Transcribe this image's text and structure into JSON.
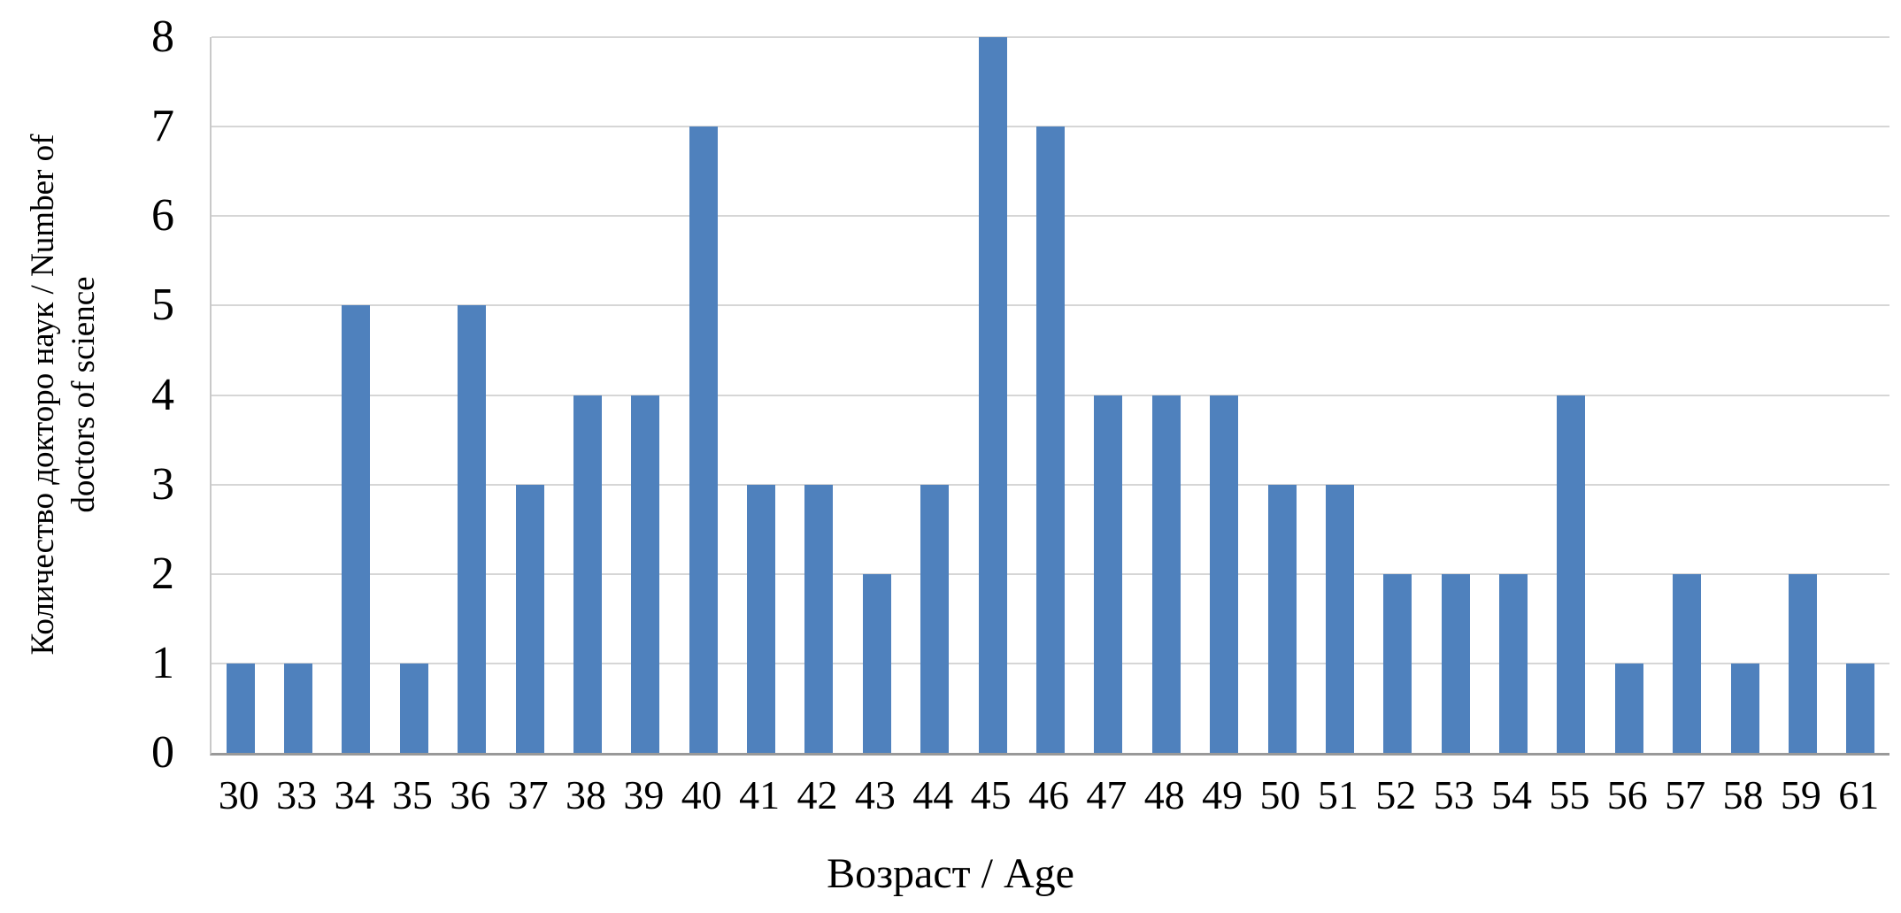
{
  "chart_data": {
    "type": "bar",
    "title": "",
    "categories": [
      "30",
      "33",
      "34",
      "35",
      "36",
      "37",
      "38",
      "39",
      "40",
      "41",
      "42",
      "43",
      "44",
      "45",
      "46",
      "47",
      "48",
      "49",
      "50",
      "51",
      "52",
      "53",
      "54",
      "55",
      "56",
      "57",
      "58",
      "59",
      "61"
    ],
    "values": [
      1,
      1,
      5,
      1,
      5,
      3,
      4,
      4,
      7,
      3,
      3,
      2,
      3,
      8,
      7,
      4,
      4,
      4,
      3,
      3,
      2,
      2,
      2,
      4,
      1,
      2,
      1,
      2,
      1
    ],
    "xlabel": "Возраст / Age",
    "ylabel": "Количество докторо наук / Number of doctors of science",
    "ylabel_lines": [
      "Количество докторо наук / Number of",
      "doctors of science"
    ],
    "yticks": [
      "0",
      "1",
      "2",
      "3",
      "4",
      "5",
      "6",
      "7",
      "8"
    ],
    "ylim": [
      0,
      8
    ],
    "grid": "horizontal-only",
    "legend": "none",
    "bar_color": "#4F81BD",
    "gridline_color": "#D6D6D6",
    "baseline_color": "#999999",
    "left_axis_color": "#C9C9C9"
  }
}
